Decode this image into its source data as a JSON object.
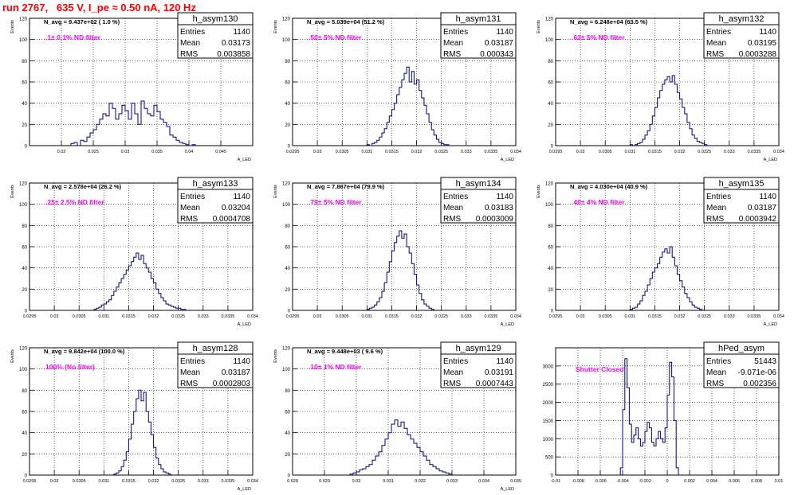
{
  "run_title": "run 2767,   635 V, I_pe ≈ 0.50 nA, 120 Hz",
  "colors": {
    "title": "#ff0000",
    "histogram": "#000080",
    "annotation": "#ff00ff",
    "grid": "#000000"
  },
  "chart_data": [
    {
      "type": "histogram",
      "name": "h_asym130",
      "ylabel": "Events",
      "xlabel": "A_LED",
      "xlim": [
        0.015,
        0.05
      ],
      "ylim": [
        0,
        120
      ],
      "xticks": [
        "0.02",
        "0.025",
        "0.03",
        "0.035",
        "0.04",
        "0.045"
      ],
      "xtick_values": [
        0.02,
        0.025,
        0.03,
        0.035,
        0.04,
        0.045
      ],
      "yticks": [
        "0",
        "20",
        "40",
        "60",
        "80",
        "100",
        "120"
      ],
      "stats": {
        "Entries": "1140",
        "Mean": "0.03173",
        "RMS": "0.003858"
      },
      "navg": "N_avg = 9.437e+02 ( 1.0 %)",
      "filter": ".1± 0.1% ND filter",
      "grid": true,
      "bins": {
        "start": 0.0215,
        "width": 0.0005,
        "values": [
          2,
          3,
          0,
          5,
          4,
          8,
          12,
          15,
          20,
          25,
          30,
          28,
          40,
          35,
          25,
          30,
          38,
          33,
          25,
          40,
          30,
          20,
          42,
          35,
          30,
          28,
          38,
          32,
          25,
          22,
          18,
          10,
          8,
          5,
          3,
          2,
          1,
          0,
          1
        ]
      }
    },
    {
      "type": "histogram",
      "name": "h_asym131",
      "ylabel": "Events",
      "xlabel": "A_LED",
      "xlim": [
        0.0295,
        0.034
      ],
      "ylim": [
        0,
        120
      ],
      "xticks": [
        "0.0295",
        "0.03",
        "0.0305",
        "0.031",
        "0.0315",
        "0.032",
        "0.0325",
        "0.033",
        "0.0335",
        "0.034"
      ],
      "xtick_values": [
        0.0295,
        0.03,
        0.0305,
        0.031,
        0.0315,
        0.032,
        0.0325,
        0.033,
        0.0335,
        0.034
      ],
      "yticks": [
        "0",
        "20",
        "40",
        "60",
        "80",
        "100",
        "120"
      ],
      "stats": {
        "Entries": "1140",
        "Mean": "0.03187",
        "RMS": "0.000343"
      },
      "navg": "N_avg = 5.039e+04 (51.2 %)",
      "filter": ".50± 5% ND filter",
      "grid": true,
      "bins": {
        "start": 0.031,
        "width": 5e-05,
        "values": [
          1,
          0,
          2,
          3,
          5,
          8,
          12,
          16,
          22,
          28,
          34,
          40,
          48,
          55,
          62,
          68,
          74,
          60,
          70,
          58,
          62,
          52,
          45,
          38,
          30,
          22,
          15,
          10,
          6,
          3,
          2,
          1,
          1,
          0
        ]
      }
    },
    {
      "type": "histogram",
      "name": "h_asym132",
      "ylabel": "Events",
      "xlabel": "A_LED",
      "xlim": [
        0.0295,
        0.034
      ],
      "ylim": [
        0,
        120
      ],
      "xticks": [
        "0.0295",
        "0.03",
        "0.0305",
        "0.031",
        "0.0315",
        "0.032",
        "0.0325",
        "0.033",
        "0.0335",
        "0.034"
      ],
      "xtick_values": [
        0.0295,
        0.03,
        0.0305,
        0.031,
        0.0315,
        0.032,
        0.0325,
        0.033,
        0.0335,
        0.034
      ],
      "yticks": [
        "0",
        "20",
        "40",
        "60",
        "80",
        "100",
        "120"
      ],
      "stats": {
        "Entries": "1140",
        "Mean": "0.03195",
        "RMS": "0.0003288"
      },
      "navg": "N_avg = 6.248e+04 (63.5 %)",
      "filter": ".63± 5% ND filter",
      "grid": true,
      "bins": {
        "start": 0.031,
        "width": 5e-05,
        "values": [
          1,
          0,
          1,
          2,
          3,
          6,
          10,
          14,
          20,
          28,
          36,
          45,
          52,
          58,
          62,
          65,
          60,
          66,
          58,
          50,
          44,
          36,
          30,
          22,
          16,
          10,
          7,
          4,
          3,
          2,
          1
        ]
      }
    },
    {
      "type": "histogram",
      "name": "h_asym133",
      "ylabel": "Events",
      "xlabel": "A_LED",
      "xlim": [
        0.0295,
        0.034
      ],
      "ylim": [
        0,
        120
      ],
      "xticks": [
        "0.0295",
        "0.03",
        "0.0305",
        "0.031",
        "0.0315",
        "0.032",
        "0.0325",
        "0.033",
        "0.0335",
        "0.034"
      ],
      "xtick_values": [
        0.0295,
        0.03,
        0.0305,
        0.031,
        0.0315,
        0.032,
        0.0325,
        0.033,
        0.0335,
        0.034
      ],
      "yticks": [
        "0",
        "20",
        "40",
        "60",
        "80",
        "100",
        "120"
      ],
      "stats": {
        "Entries": "1140",
        "Mean": "0.03204",
        "RMS": "0.0004708"
      },
      "navg": "N_avg = 2.578e+04 (26.2 %)",
      "filter": ".25± 2.5% ND filter",
      "grid": true,
      "bins": {
        "start": 0.0308,
        "width": 5e-05,
        "values": [
          1,
          2,
          3,
          5,
          6,
          8,
          10,
          14,
          18,
          22,
          26,
          30,
          34,
          38,
          42,
          46,
          50,
          54,
          48,
          52,
          44,
          40,
          36,
          30,
          26,
          20,
          16,
          12,
          9,
          6,
          5,
          4,
          3,
          2,
          2,
          1,
          1,
          0
        ]
      }
    },
    {
      "type": "histogram",
      "name": "h_asym134",
      "ylabel": "Events",
      "xlabel": "A_LED",
      "xlim": [
        0.0295,
        0.034
      ],
      "ylim": [
        0,
        120
      ],
      "xticks": [
        "0.0295",
        "0.03",
        "0.0305",
        "0.031",
        "0.0315",
        "0.032",
        "0.0325",
        "0.033",
        "0.0335",
        "0.034"
      ],
      "xtick_values": [
        0.0295,
        0.03,
        0.0305,
        0.031,
        0.0315,
        0.032,
        0.0325,
        0.033,
        0.0335,
        0.034
      ],
      "yticks": [
        "0",
        "20",
        "40",
        "60",
        "80",
        "100",
        "120"
      ],
      "stats": {
        "Entries": "1140",
        "Mean": "0.03183",
        "RMS": "0.0003009"
      },
      "navg": "N_avg = 7.867e+04 (79.9 %)",
      "filter": ".79± 5% ND filter",
      "grid": true,
      "bins": {
        "start": 0.031,
        "width": 5e-05,
        "values": [
          1,
          2,
          3,
          5,
          8,
          12,
          18,
          26,
          36,
          46,
          56,
          64,
          70,
          75,
          68,
          72,
          60,
          54,
          44,
          34,
          24,
          16,
          10,
          6,
          4,
          2,
          1
        ]
      }
    },
    {
      "type": "histogram",
      "name": "h_asym135",
      "ylabel": "Events",
      "xlabel": "A_LED",
      "xlim": [
        0.0295,
        0.034
      ],
      "ylim": [
        0,
        120
      ],
      "xticks": [
        "0.0295",
        "0.03",
        "0.0305",
        "0.031",
        "0.0315",
        "0.032",
        "0.0325",
        "0.033",
        "0.0335",
        "0.034"
      ],
      "xtick_values": [
        0.0295,
        0.03,
        0.0305,
        0.031,
        0.0315,
        0.032,
        0.0325,
        0.033,
        0.0335,
        0.034
      ],
      "yticks": [
        "0",
        "20",
        "40",
        "60",
        "80",
        "100",
        "120"
      ],
      "stats": {
        "Entries": "1140",
        "Mean": "0.03187",
        "RMS": "0.0003942"
      },
      "navg": "N_avg = 4.030e+04 (40.9 %)",
      "filter": ".40± 4% ND filter",
      "grid": true,
      "bins": {
        "start": 0.031,
        "width": 5e-05,
        "values": [
          1,
          2,
          3,
          6,
          9,
          14,
          18,
          24,
          30,
          36,
          40,
          44,
          50,
          55,
          58,
          54,
          60,
          50,
          42,
          34,
          28,
          22,
          16,
          12,
          8,
          5,
          3,
          2,
          1
        ]
      }
    },
    {
      "type": "histogram",
      "name": "h_asym128",
      "ylabel": "Events",
      "xlabel": "A_LED",
      "xlim": [
        0.0295,
        0.034
      ],
      "ylim": [
        0,
        120
      ],
      "xticks": [
        "0.0295",
        "0.03",
        "0.0305",
        "0.031",
        "0.0315",
        "0.032",
        "0.0325",
        "0.033",
        "0.0335",
        "0.034"
      ],
      "xtick_values": [
        0.0295,
        0.03,
        0.0305,
        0.031,
        0.0315,
        0.032,
        0.0325,
        0.033,
        0.0335,
        0.034
      ],
      "yticks": [
        "0",
        "20",
        "40",
        "60",
        "80",
        "100",
        "120"
      ],
      "stats": {
        "Entries": "1140",
        "Mean": "0.03187",
        "RMS": "0.0002803"
      },
      "navg": "N_avg = 9.842e+04 (100.0 %)",
      "filter": "100% (No filter)",
      "grid": true,
      "bins": {
        "start": 0.0312,
        "width": 5e-05,
        "values": [
          1,
          2,
          4,
          8,
          14,
          22,
          34,
          48,
          60,
          72,
          80,
          70,
          78,
          60,
          50,
          38,
          26,
          16,
          10,
          6,
          3,
          2,
          1
        ]
      }
    },
    {
      "type": "histogram",
      "name": "h_asym129",
      "ylabel": "Events",
      "xlabel": "A_LED",
      "xlim": [
        0.028,
        0.035
      ],
      "ylim": [
        0,
        120
      ],
      "xticks": [
        "0.028",
        "0.029",
        "0.03",
        "0.031",
        "0.032",
        "0.033",
        "0.034",
        "0.035"
      ],
      "xtick_values": [
        0.028,
        0.029,
        0.03,
        0.031,
        0.032,
        0.033,
        0.034,
        0.035
      ],
      "yticks": [
        "0",
        "20",
        "40",
        "60",
        "80",
        "100",
        "120"
      ],
      "stats": {
        "Entries": "1140",
        "Mean": "0.03191",
        "RMS": "0.0007443"
      },
      "navg": "N_avg = 9.448e+03 ( 9.6 %)",
      "filter": ".10± 1% ND filter",
      "grid": true,
      "bins": {
        "start": 0.0298,
        "width": 0.0001,
        "values": [
          1,
          2,
          3,
          5,
          6,
          8,
          10,
          14,
          18,
          22,
          28,
          34,
          40,
          48,
          52,
          46,
          50,
          44,
          38,
          34,
          30,
          26,
          22,
          18,
          14,
          10,
          8,
          6,
          4,
          3,
          2,
          1
        ]
      }
    },
    {
      "type": "histogram",
      "name": "hPed_asym",
      "ylabel": "",
      "xlabel": "",
      "xlim": [
        -0.01,
        0.01
      ],
      "ylim": [
        0,
        3500
      ],
      "xticks": [
        "-0.01",
        "-0.008",
        "-0.006",
        "-0.004",
        "-0.002",
        "0",
        "0.002",
        "0.004",
        "0.006",
        "0.008",
        "0.01"
      ],
      "xtick_values": [
        -0.01,
        -0.008,
        -0.006,
        -0.004,
        -0.002,
        0,
        0.002,
        0.004,
        0.006,
        0.008,
        0.01
      ],
      "yticks": [
        "0",
        "500",
        "1000",
        "1500",
        "2000",
        "2500",
        "3000"
      ],
      "ytick_values": [
        0,
        500,
        1000,
        1500,
        2000,
        2500,
        3000
      ],
      "stats": {
        "Entries": "51443",
        "Mean": "-9.071e-06",
        "RMS": "0.002356"
      },
      "navg": "",
      "filter": "Shutter Closed",
      "grid": true,
      "bins": {
        "start": -0.0044,
        "width": 0.0002,
        "values": [
          0,
          200,
          1800,
          3200,
          2400,
          1400,
          900,
          1100,
          1300,
          1000,
          800,
          900,
          1200,
          1450,
          1300,
          900,
          800,
          1000,
          1200,
          1000,
          900,
          1300,
          2200,
          3100,
          2700,
          1500,
          200,
          0
        ]
      }
    }
  ]
}
